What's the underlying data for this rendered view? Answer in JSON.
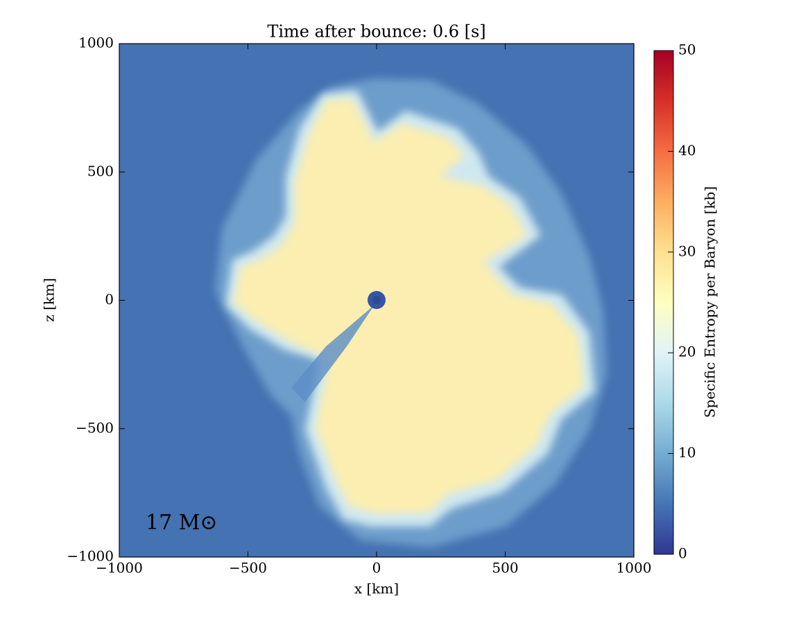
{
  "chart_data": {
    "type": "heatmap",
    "title": "Time after bounce: 0.6 [s]",
    "x_label": "x [km]",
    "y_label": "z [km]",
    "annotation": "17 M⊙",
    "xlim": [
      -1000,
      1000
    ],
    "ylim": [
      -1000,
      1000
    ],
    "xticks": [
      {
        "value": -1000,
        "label": "−1000"
      },
      {
        "value": -500,
        "label": "−500"
      },
      0,
      500,
      1000
    ],
    "yticks": [
      {
        "value": -1000,
        "label": "−1000"
      },
      {
        "value": -500,
        "label": "−500"
      },
      0,
      500,
      1000
    ],
    "colorbar": {
      "label": "Specific Entropy per Baryon [kb]",
      "lim": [
        0,
        50
      ],
      "ticks": [
        0,
        10,
        20,
        30,
        40,
        50
      ],
      "colors": [
        "#313695",
        "#4575b4",
        "#74add1",
        "#abd9e9",
        "#e0f3f8",
        "#ffffbf",
        "#fee090",
        "#fdae61",
        "#f46d43",
        "#d73027",
        "#a50026"
      ]
    }
  }
}
